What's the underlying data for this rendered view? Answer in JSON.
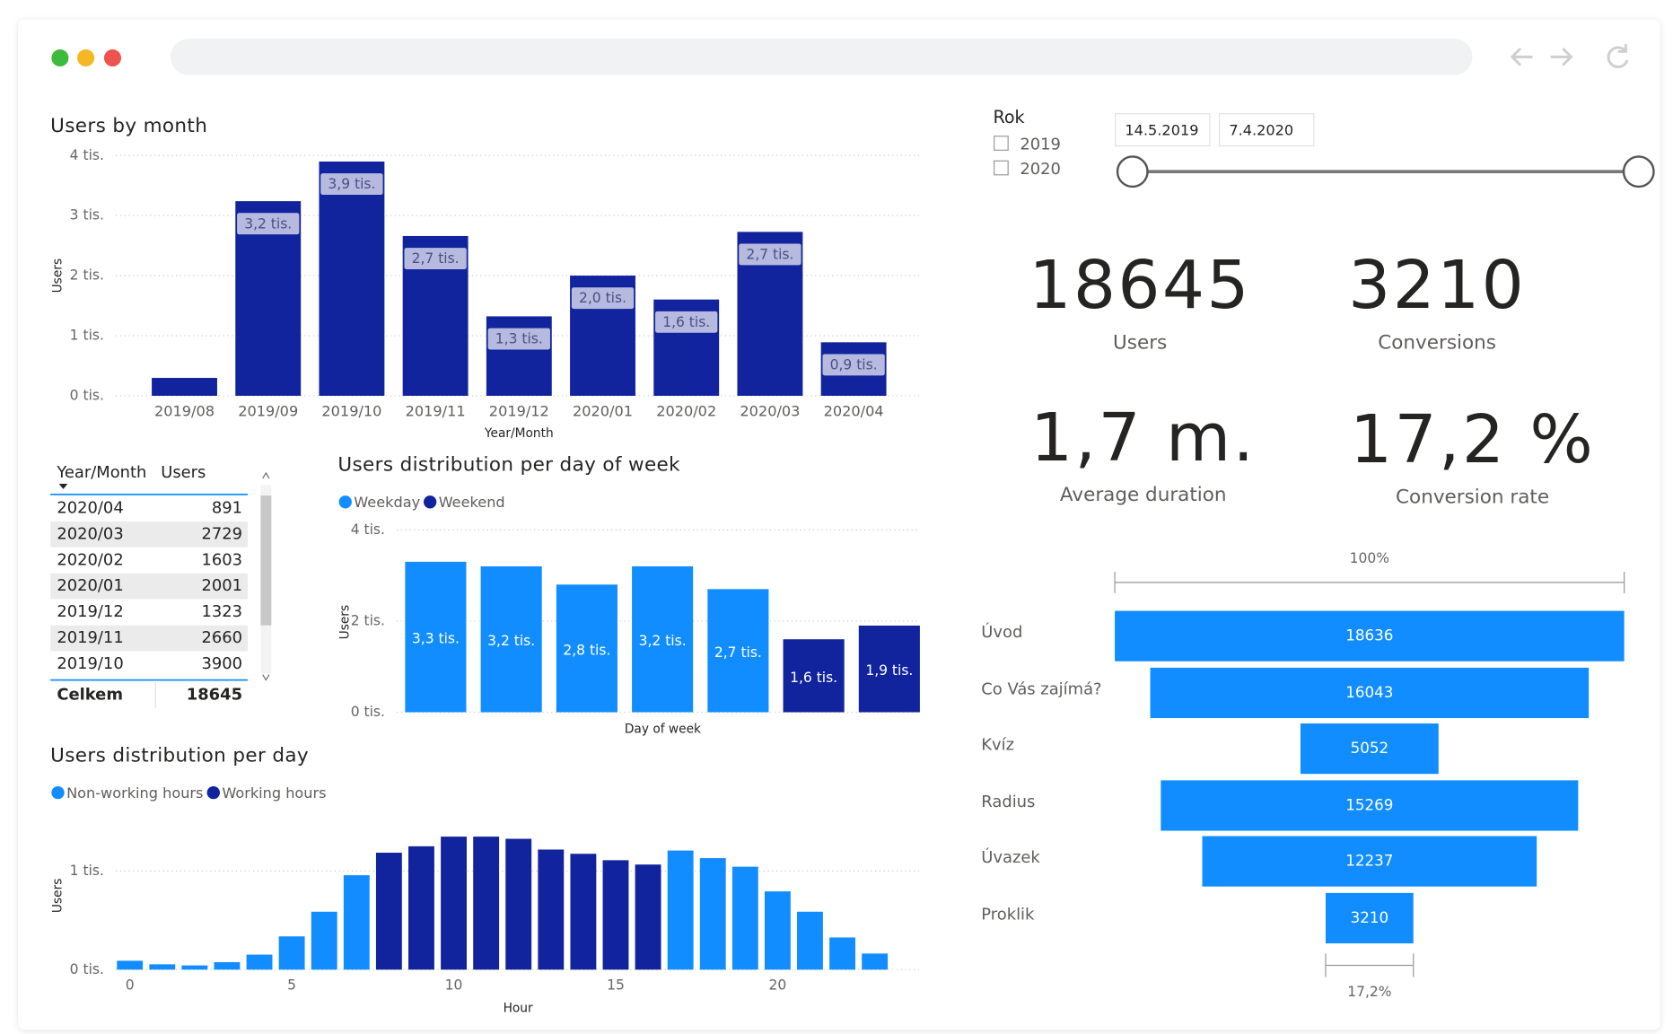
{
  "chart_data": [
    {
      "type": "bar",
      "title": "Users by month",
      "x_label": "Year/Month",
      "y_label": "Users",
      "categories": [
        "2019/08",
        "2019/09",
        "2019/10",
        "2019/11",
        "2019/12",
        "2020/01",
        "2020/02",
        "2020/03",
        "2020/04"
      ],
      "values": [
        298,
        3240,
        3900,
        2660,
        1323,
        2001,
        1603,
        2729,
        891
      ],
      "value_labels": [
        null,
        "3,2 tis.",
        "3,9 tis.",
        "2,7 tis.",
        "1,3 tis.",
        "2,0 tis.",
        "1,6 tis.",
        "2,7 tis.",
        "0,9 tis."
      ],
      "color": "#12239e",
      "ylim": [
        0,
        4000
      ],
      "yticks": [
        {
          "value": 0,
          "label": "0 tis."
        },
        {
          "value": 1000,
          "label": "1 tis."
        },
        {
          "value": 2000,
          "label": "2 tis."
        },
        {
          "value": 3000,
          "label": "3 tis."
        },
        {
          "value": 4000,
          "label": "4 tis."
        }
      ],
      "grid": true
    },
    {
      "type": "bar",
      "title": "Users distribution per day of week",
      "x_label": "Day of week",
      "y_label": "Users",
      "categories": [
        null,
        null,
        null,
        null,
        null,
        null,
        null
      ],
      "series": [
        {
          "name": "Weekday",
          "color": "#118dff",
          "values": [
            3300,
            3200,
            2800,
            3200,
            2700,
            null,
            null
          ],
          "value_labels": [
            "3,3 tis.",
            "3,2 tis.",
            "2,8 tis.",
            "3,2 tis.",
            "2,7 tis.",
            null,
            null
          ]
        },
        {
          "name": "Weekend",
          "color": "#12239e",
          "values": [
            null,
            null,
            null,
            null,
            null,
            1600,
            1900
          ],
          "value_labels": [
            null,
            null,
            null,
            null,
            null,
            "1,6 tis.",
            "1,9 tis."
          ]
        }
      ],
      "ylim": [
        0,
        4000
      ],
      "yticks": [
        {
          "value": 0,
          "label": "0 tis."
        },
        {
          "value": 2000,
          "label": "2 tis."
        },
        {
          "value": 4000,
          "label": "4 tis."
        }
      ],
      "grid": true
    },
    {
      "type": "bar",
      "title": "Users distribution per day",
      "x_label": "Hour",
      "y_label": "Users",
      "x": [
        0,
        1,
        2,
        3,
        4,
        5,
        6,
        7,
        8,
        9,
        10,
        11,
        12,
        13,
        14,
        15,
        16,
        17,
        18,
        19,
        20,
        21,
        22,
        23
      ],
      "series": [
        {
          "name": "Non-working hours",
          "color": "#118dff",
          "values": [
            90,
            54,
            43,
            76,
            152,
            337,
            587,
            957,
            null,
            null,
            null,
            null,
            null,
            null,
            null,
            null,
            null,
            1207,
            1130,
            1043,
            793,
            587,
            326,
            163
          ]
        },
        {
          "name": "Working hours",
          "color": "#12239e",
          "values": [
            null,
            null,
            null,
            null,
            null,
            null,
            null,
            null,
            1185,
            1250,
            1348,
            1348,
            1326,
            1217,
            1174,
            1109,
            1065,
            null,
            null,
            null,
            null,
            null,
            null,
            null
          ]
        }
      ],
      "xlim": [
        -0.5,
        24.5
      ],
      "xticks": [
        0,
        5,
        10,
        15,
        20
      ],
      "ylim": [
        0,
        1400
      ],
      "yticks": [
        {
          "value": 0,
          "label": "0 tis."
        },
        {
          "value": 1000,
          "label": "1 tis."
        }
      ],
      "grid": true
    },
    {
      "type": "funnel",
      "categories": [
        "Úvod",
        "Co Vás zajímá?",
        "Kvíz",
        "Radius",
        "Úvazek",
        "Proklik"
      ],
      "values": [
        18636,
        16043,
        5052,
        15269,
        12237,
        3210
      ],
      "color": "#118dff",
      "top_label": "100%",
      "bottom_label": "17,2%"
    }
  ],
  "slicer": {
    "title": "Rok",
    "options": [
      "2019",
      "2020"
    ],
    "date_from": "14.5.2019",
    "date_to": "7.4.2020"
  },
  "kpis": [
    {
      "value": 18645,
      "label": "Users"
    },
    {
      "value": 3210,
      "label": "Conversions"
    },
    {
      "value": "1,7 m.",
      "label": "Average duration"
    },
    {
      "value": "17,2 %",
      "label": "Conversion rate"
    }
  ],
  "table": {
    "columns": [
      "Year/Month",
      "Users"
    ],
    "rows": [
      [
        "2020/04",
        891
      ],
      [
        "2020/03",
        2729
      ],
      [
        "2020/02",
        1603
      ],
      [
        "2020/01",
        2001
      ],
      [
        "2019/12",
        1323
      ],
      [
        "2019/11",
        2660
      ],
      [
        "2019/10",
        3900
      ]
    ],
    "total": [
      "Celkem",
      18645
    ]
  }
}
